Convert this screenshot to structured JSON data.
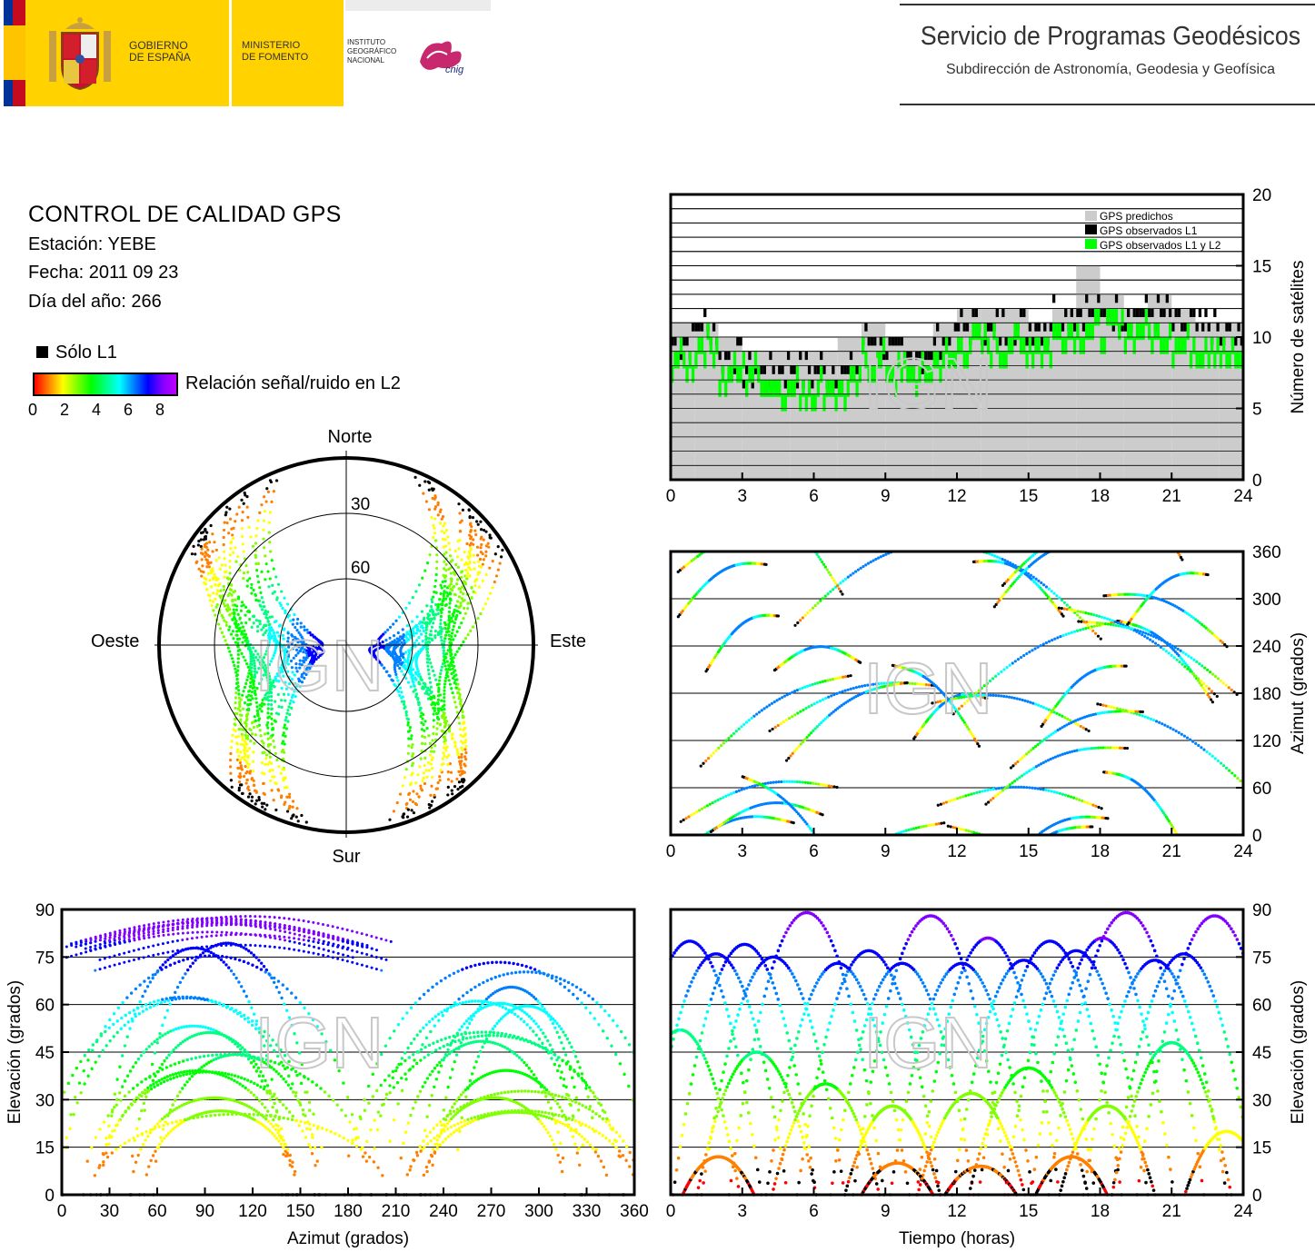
{
  "header": {
    "gov_line1": "GOBIERNO",
    "gov_line2": "DE ESPAÑA",
    "ministry_line1": "MINISTERIO",
    "ministry_line2": "DE FOMENTO",
    "institute_line1": "INSTITUTO",
    "institute_line2": "GEOGRÁFICO",
    "institute_line3": "NACIONAL",
    "cnig_logo": "cnig",
    "service_title": "Servicio de Programas Geodésicos",
    "service_subtitle": "Subdirección de Astronomía, Geodesia y Geofísica"
  },
  "info": {
    "title": "CONTROL DE CALIDAD GPS",
    "station": "Estación: YEBE",
    "date": "Fecha: 2011 09 23",
    "doy": "Día del año: 266",
    "l1_only": "Sólo L1",
    "snr_label": "Relación señal/ruido en L2",
    "colorbar_ticks": [
      "0",
      "2",
      "4",
      "6",
      "8"
    ]
  },
  "colors": {
    "snr_scale": [
      "#ff0000",
      "#ff8000",
      "#ffff00",
      "#80ff00",
      "#00ff00",
      "#00ff80",
      "#00ffff",
      "#0080ff",
      "#0000ff",
      "#8000ff"
    ],
    "predicted": "#cccccc",
    "observed_l1": "#000000",
    "observed_l1l2": "#00ff00",
    "watermark": "IGN"
  },
  "chart_data": [
    {
      "type": "area",
      "name": "satellite-count",
      "legend": [
        "GPS predichos",
        "GPS observados L1",
        "GPS observados L1 y L2"
      ],
      "legend_position": "top-right",
      "xlim": [
        0,
        24
      ],
      "ylim": [
        0,
        20
      ],
      "xticks": [
        "0",
        "3",
        "6",
        "9",
        "12",
        "15",
        "18",
        "21",
        "24"
      ],
      "yticks": [
        "0",
        "5",
        "10",
        "15",
        "20"
      ],
      "ylabel": "Número de satélites",
      "grid": true,
      "x_hours": [
        0,
        1,
        2,
        3,
        4,
        5,
        6,
        7,
        8,
        9,
        10,
        11,
        12,
        13,
        14,
        15,
        16,
        17,
        18,
        19,
        20,
        21,
        22,
        23,
        24
      ],
      "series": [
        {
          "name": "GPS predichos",
          "values": [
            11,
            11,
            10,
            9,
            9,
            9,
            9,
            10,
            11,
            10,
            10,
            11,
            12,
            12,
            12,
            11,
            12,
            15,
            13,
            12,
            13,
            12,
            11,
            11,
            10
          ]
        },
        {
          "name": "GPS observados L1",
          "values": [
            10,
            11,
            9,
            8,
            8,
            8,
            8,
            8,
            10,
            9,
            9,
            10,
            11,
            11,
            11,
            11,
            12,
            12,
            12,
            12,
            12,
            11,
            11,
            10,
            10
          ]
        },
        {
          "name": "GPS observados L1 y L2",
          "values": [
            9,
            10,
            8,
            8,
            7,
            7,
            7,
            7,
            9,
            8,
            8,
            9,
            10,
            10,
            10,
            10,
            11,
            11,
            11,
            11,
            11,
            10,
            10,
            9,
            9
          ]
        }
      ]
    },
    {
      "type": "scatter",
      "name": "azimuth-vs-time",
      "xlim": [
        0,
        24
      ],
      "ylim": [
        0,
        360
      ],
      "xticks": [
        "0",
        "3",
        "6",
        "9",
        "12",
        "15",
        "18",
        "21",
        "24"
      ],
      "yticks": [
        "0",
        "60",
        "120",
        "180",
        "240",
        "300",
        "360"
      ],
      "ylabel": "Azimut (grados)",
      "grid": true
    },
    {
      "type": "scatter",
      "name": "sky-plot",
      "directions": [
        "Norte",
        "Sur",
        "Este",
        "Oeste"
      ],
      "elevation_rings": [
        "30",
        "60"
      ]
    },
    {
      "type": "scatter",
      "name": "elevation-vs-azimuth",
      "xlim": [
        0,
        360
      ],
      "ylim": [
        0,
        90
      ],
      "xticks": [
        "0",
        "30",
        "60",
        "90",
        "120",
        "150",
        "180",
        "210",
        "240",
        "270",
        "300",
        "330",
        "360"
      ],
      "yticks": [
        "0",
        "15",
        "30",
        "45",
        "60",
        "75",
        "90"
      ],
      "xlabel": "Azimut (grados)",
      "ylabel": "Elevación (grados)",
      "grid": true
    },
    {
      "type": "scatter",
      "name": "elevation-vs-time",
      "xlim": [
        0,
        24
      ],
      "ylim": [
        0,
        90
      ],
      "xticks": [
        "0",
        "3",
        "6",
        "9",
        "12",
        "15",
        "18",
        "21",
        "24"
      ],
      "yticks": [
        "0",
        "15",
        "30",
        "45",
        "60",
        "75",
        "90"
      ],
      "xlabel": "Tiempo (horas)",
      "ylabel": "Elevación (grados)",
      "grid": true,
      "passes": [
        {
          "peak_time": 0.8,
          "peak_el": 80,
          "duration": 6
        },
        {
          "peak_time": 1.9,
          "peak_el": 76,
          "duration": 6
        },
        {
          "peak_time": 3.1,
          "peak_el": 79,
          "duration": 6
        },
        {
          "peak_time": 4.3,
          "peak_el": 75,
          "duration": 6
        },
        {
          "peak_time": 5.7,
          "peak_el": 89,
          "duration": 6.5
        },
        {
          "peak_time": 7.0,
          "peak_el": 73,
          "duration": 6
        },
        {
          "peak_time": 8.3,
          "peak_el": 77,
          "duration": 6
        },
        {
          "peak_time": 9.7,
          "peak_el": 73,
          "duration": 6
        },
        {
          "peak_time": 10.9,
          "peak_el": 88,
          "duration": 6.5
        },
        {
          "peak_time": 12.2,
          "peak_el": 73,
          "duration": 6
        },
        {
          "peak_time": 13.3,
          "peak_el": 81,
          "duration": 6
        },
        {
          "peak_time": 14.8,
          "peak_el": 74,
          "duration": 6
        },
        {
          "peak_time": 15.9,
          "peak_el": 80,
          "duration": 6
        },
        {
          "peak_time": 17.0,
          "peak_el": 77,
          "duration": 6
        },
        {
          "peak_time": 18.1,
          "peak_el": 81,
          "duration": 6
        },
        {
          "peak_time": 19.1,
          "peak_el": 89,
          "duration": 6.5
        },
        {
          "peak_time": 20.3,
          "peak_el": 74,
          "duration": 6
        },
        {
          "peak_time": 21.5,
          "peak_el": 76,
          "duration": 6
        },
        {
          "peak_time": 22.8,
          "peak_el": 88,
          "duration": 6.5
        },
        {
          "peak_time": 0.4,
          "peak_el": 52,
          "duration": 5
        },
        {
          "peak_time": 3.6,
          "peak_el": 45,
          "duration": 5
        },
        {
          "peak_time": 6.5,
          "peak_el": 35,
          "duration": 4.5
        },
        {
          "peak_time": 9.3,
          "peak_el": 28,
          "duration": 4
        },
        {
          "peak_time": 12.6,
          "peak_el": 32,
          "duration": 4.5
        },
        {
          "peak_time": 15.0,
          "peak_el": 40,
          "duration": 5
        },
        {
          "peak_time": 18.3,
          "peak_el": 28,
          "duration": 4
        },
        {
          "peak_time": 21.0,
          "peak_el": 48,
          "duration": 5
        },
        {
          "peak_time": 23.3,
          "peak_el": 20,
          "duration": 3.5
        },
        {
          "peak_time": 2.0,
          "peak_el": 12,
          "duration": 3
        },
        {
          "peak_time": 9.5,
          "peak_el": 10,
          "duration": 3
        },
        {
          "peak_time": 13.0,
          "peak_el": 9,
          "duration": 3
        },
        {
          "peak_time": 16.8,
          "peak_el": 12,
          "duration": 3
        }
      ]
    }
  ]
}
